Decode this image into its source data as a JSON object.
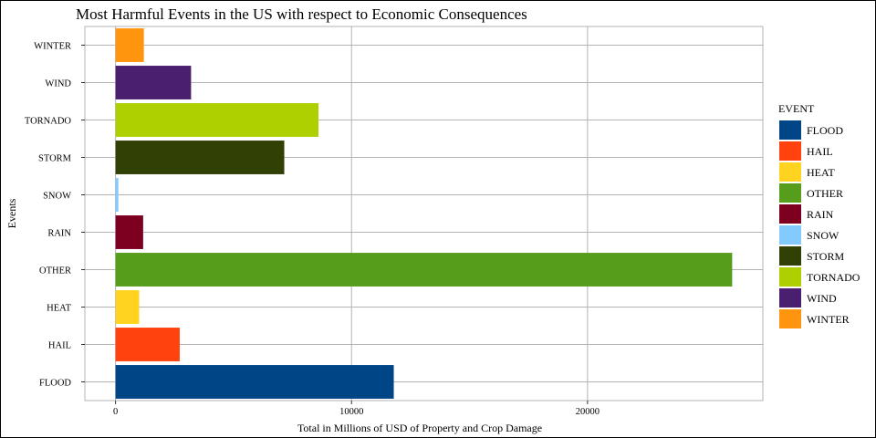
{
  "chart_data": {
    "type": "bar",
    "orientation": "horizontal",
    "title": "Most Harmful Events in the US with respect to Economic Consequences",
    "xlabel": "Total in Millions of USD of Property and Crop Damage",
    "ylabel": "Events",
    "categories": [
      "FLOOD",
      "HAIL",
      "HEAT",
      "OTHER",
      "RAIN",
      "SNOW",
      "STORM",
      "TORNADO",
      "WIND",
      "WINTER"
    ],
    "values": [
      11790,
      2720,
      1000,
      26130,
      1170,
      120,
      7150,
      8600,
      3200,
      1200
    ],
    "colors": [
      "#004586",
      "#ff420e",
      "#ffd320",
      "#579d1c",
      "#7e0021",
      "#83caff",
      "#314004",
      "#aecf00",
      "#4b1f6f",
      "#ff950e"
    ],
    "xticks": [
      0,
      10000,
      20000
    ],
    "xtick_labels": [
      "0",
      "10000",
      "20000"
    ],
    "xlim": [
      -1300,
      27430
    ],
    "grid": true,
    "legend": {
      "title": "EVENT",
      "placement": "right",
      "entries": [
        "FLOOD",
        "HAIL",
        "HEAT",
        "OTHER",
        "RAIN",
        "SNOW",
        "STORM",
        "TORNADO",
        "WIND",
        "WINTER"
      ]
    }
  }
}
